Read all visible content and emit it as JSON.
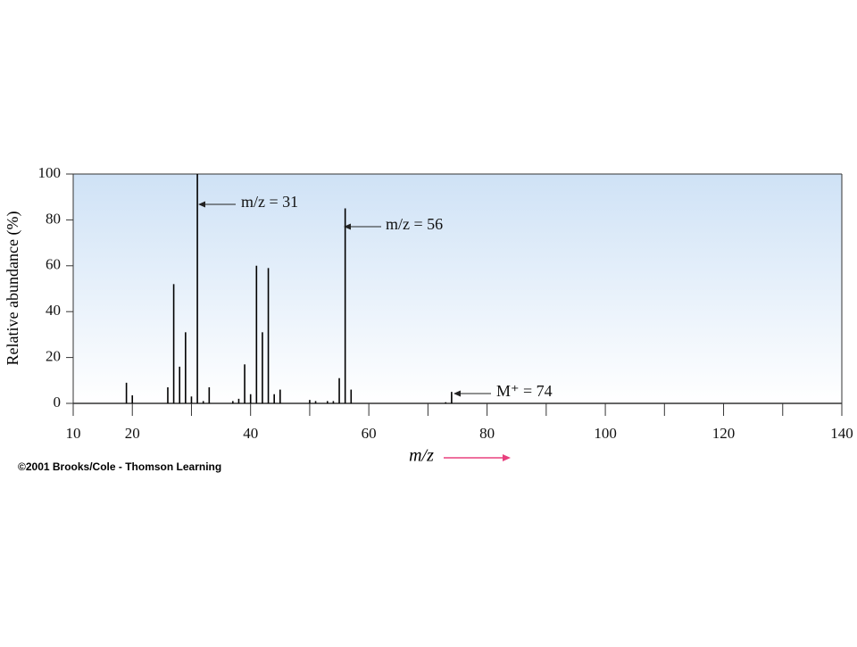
{
  "chart_data": {
    "type": "bar",
    "x_label": "m/z",
    "y_label": "Relative abundance (%)",
    "x": [
      19,
      20,
      26,
      27,
      28,
      29,
      30,
      31,
      32,
      33,
      37,
      38,
      39,
      40,
      41,
      42,
      43,
      44,
      45,
      50,
      51,
      53,
      54,
      55,
      56,
      57,
      73,
      74
    ],
    "values": [
      9,
      3.5,
      7,
      52,
      16,
      31,
      3,
      100,
      1,
      7,
      1,
      2,
      17,
      4,
      60,
      31,
      59,
      4,
      6,
      1.5,
      1,
      1,
      1,
      11,
      85,
      6,
      0.5,
      5
    ],
    "color": "#000000",
    "xlim": [
      10,
      140
    ],
    "xticks": [
      10,
      20,
      40,
      60,
      80,
      100,
      120,
      140
    ],
    "xminorticks": [
      30,
      50,
      70,
      90,
      110,
      130
    ],
    "ylim": [
      0,
      100
    ],
    "yticks": [
      0,
      20,
      40,
      60,
      80,
      100
    ],
    "annotations": [
      "m/z = 31",
      "m/z = 56",
      "M⁺ = 74"
    ],
    "credit": "©2001 Brooks/Cole - Thomson Learning"
  }
}
